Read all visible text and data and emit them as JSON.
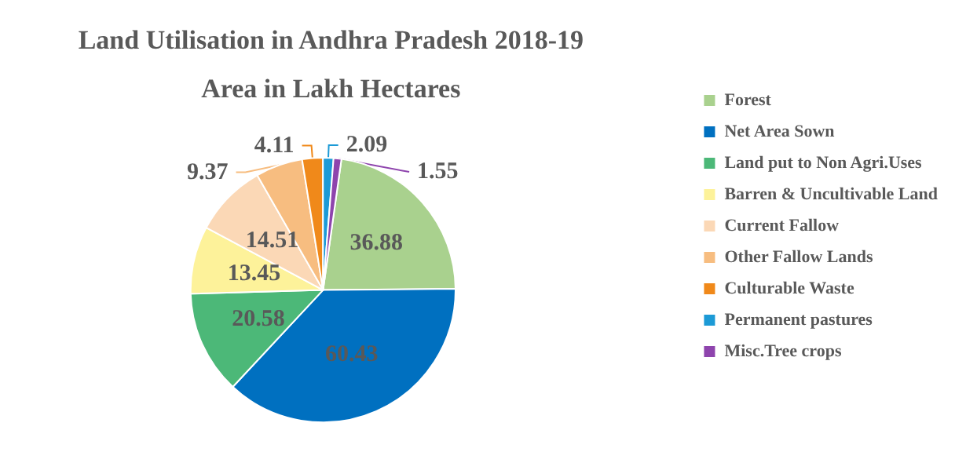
{
  "chart_data": {
    "type": "pie",
    "title": "Land Utilisation in Andhra Pradesh 2018-19",
    "subtitle": "Area in Lakh Hectares",
    "categories": [
      "Forest",
      "Net Area Sown",
      "Land put to Non Agri.Uses",
      "Barren & Uncultivable Land",
      "Current Fallow",
      "Other Fallow Lands",
      "Culturable Waste",
      "Permanent pastures",
      "Misc.Tree crops"
    ],
    "values": [
      36.88,
      60.43,
      20.58,
      13.45,
      14.51,
      9.37,
      4.11,
      2.09,
      1.55
    ],
    "colors": [
      "#a9d18e",
      "#0070c0",
      "#4cb878",
      "#fdf29a",
      "#fbd8b6",
      "#f7bd80",
      "#f0891a",
      "#1c9ad6",
      "#8e44ad"
    ],
    "data_labels": true,
    "legend": "right"
  }
}
